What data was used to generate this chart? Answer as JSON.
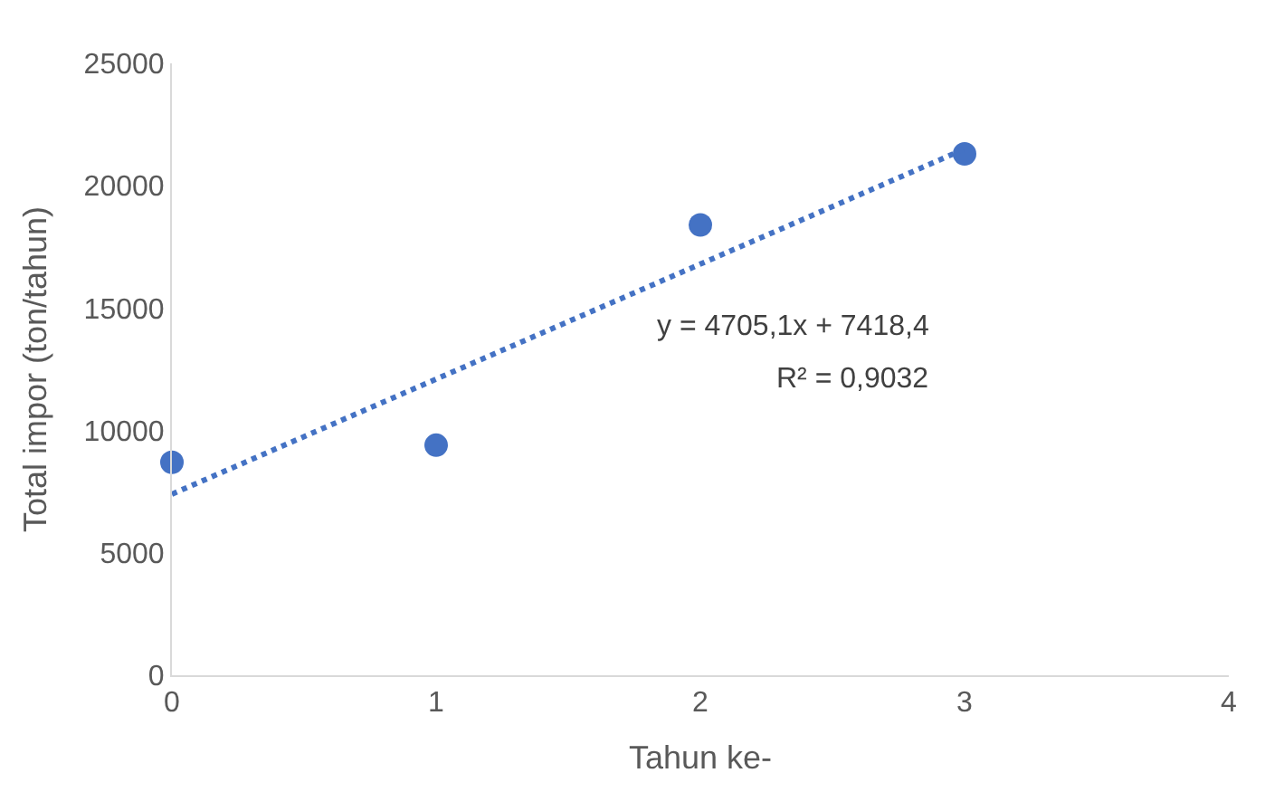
{
  "chart_data": {
    "type": "scatter",
    "xlabel": "Tahun ke-",
    "ylabel": "Total impor (ton/tahun)",
    "x": [
      0,
      1,
      2,
      3
    ],
    "series": [
      {
        "color": "#4472c4",
        "marker": "circle",
        "values": [
          8700,
          9400,
          18400,
          21300
        ]
      },
      {
        "type": "line",
        "color": "#4472c4",
        "line_style": "dotted",
        "marker": "none",
        "x": [
          0,
          3
        ],
        "values": [
          7400,
          21500
        ]
      }
    ],
    "xlim": [
      0,
      4
    ],
    "xticks": [
      0,
      1,
      2,
      3,
      4
    ],
    "ylim": [
      0,
      25000
    ],
    "yticks": [
      0,
      5000,
      10000,
      15000,
      20000,
      25000
    ],
    "grid": false,
    "legend": false,
    "annotations": [
      "y = 4705,1x + 7418,4",
      "R² = 0,9032"
    ]
  }
}
